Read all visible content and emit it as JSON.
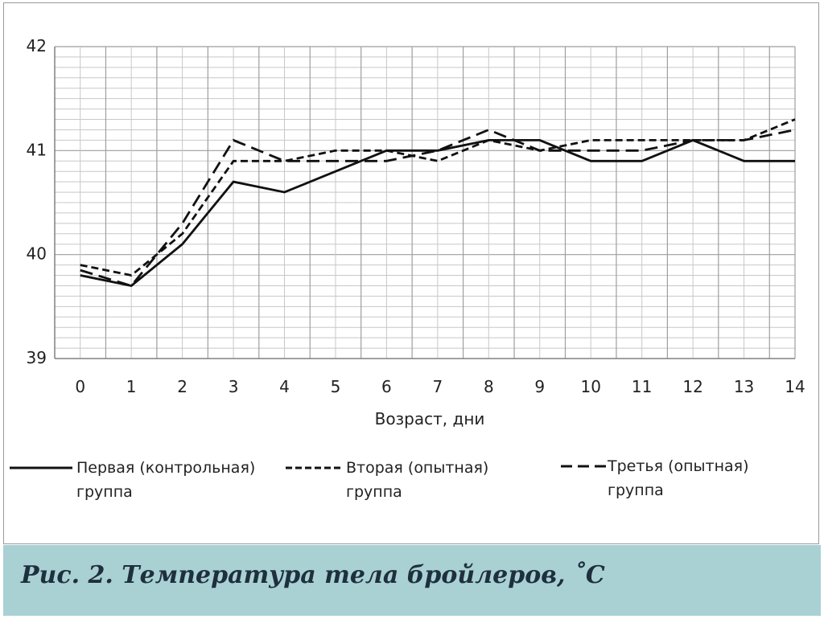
{
  "caption": "Рис. 2. Температура тела бройлеров, ˚С",
  "chart_data": {
    "type": "line",
    "xlabel": "Возраст, дни",
    "ylabel": "",
    "categories": [
      "0",
      "1",
      "2",
      "3",
      "4",
      "5",
      "6",
      "7",
      "8",
      "9",
      "10",
      "11",
      "12",
      "13",
      "14"
    ],
    "ylim": [
      39,
      42
    ],
    "yticks": [
      "39",
      "40",
      "41",
      "42"
    ],
    "grid": true,
    "legend_position": "bottom",
    "series": [
      {
        "name": "Первая (контрольная) группа",
        "dash": "solid",
        "values": [
          39.8,
          39.7,
          40.1,
          40.7,
          40.6,
          40.8,
          41.0,
          41.0,
          41.1,
          41.1,
          40.9,
          40.9,
          41.1,
          40.9,
          40.9
        ]
      },
      {
        "name": "Вторая (опытная) группа",
        "dash": "short-dash",
        "values": [
          39.9,
          39.8,
          40.2,
          40.9,
          40.9,
          41.0,
          41.0,
          40.9,
          41.1,
          41.0,
          41.1,
          41.1,
          41.1,
          41.1,
          41.3
        ]
      },
      {
        "name": "Третья (опытная) группа",
        "dash": "long-dash",
        "values": [
          39.85,
          39.7,
          40.3,
          41.1,
          40.9,
          40.9,
          40.9,
          41.0,
          41.2,
          41.0,
          41.0,
          41.0,
          41.1,
          41.1,
          41.2
        ]
      }
    ]
  }
}
